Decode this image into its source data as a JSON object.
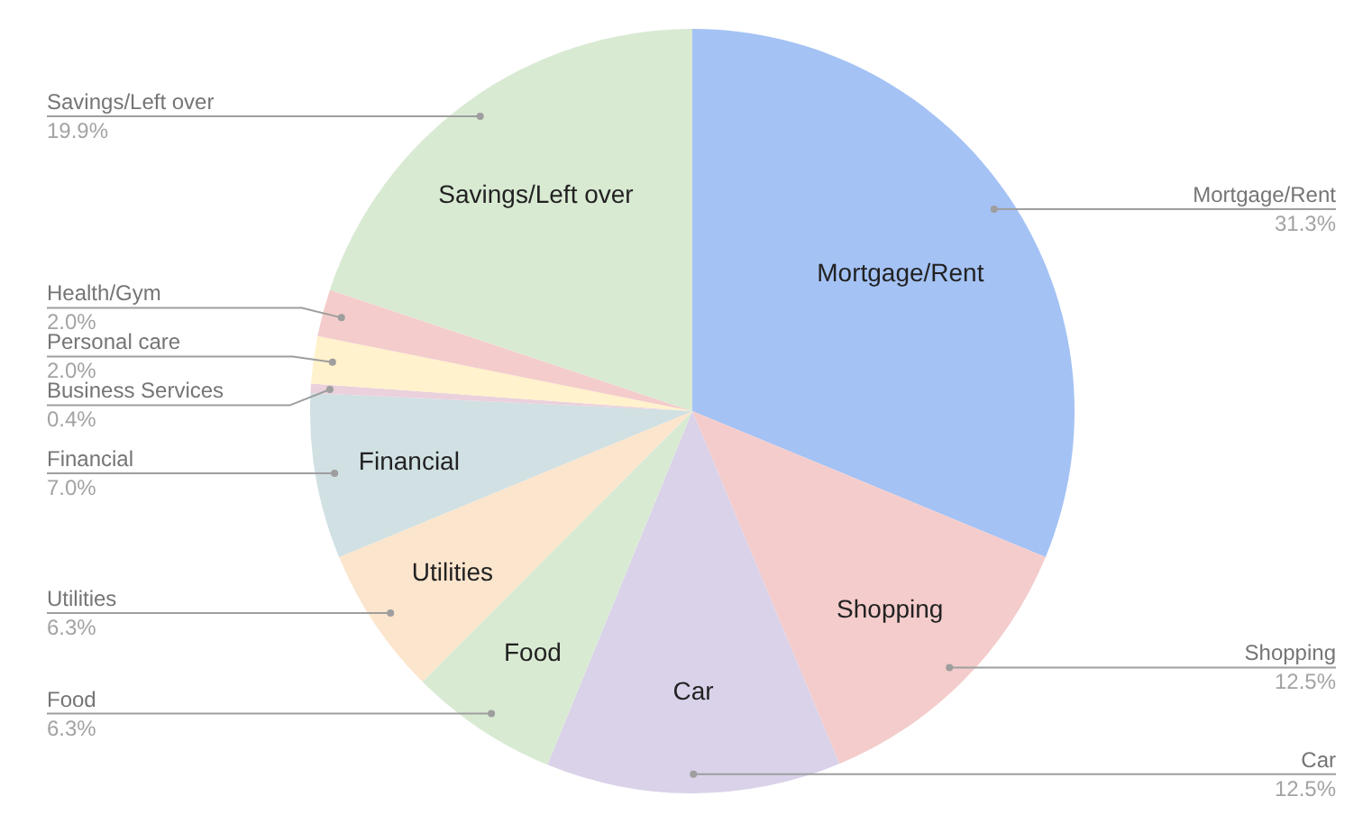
{
  "chart_data": {
    "type": "pie",
    "categories": [
      "Mortgage/Rent",
      "Shopping",
      "Car",
      "Food",
      "Utilities",
      "Financial",
      "Business Services",
      "Personal care",
      "Health/Gym",
      "Savings/Left over"
    ],
    "values": [
      31.3,
      12.5,
      12.5,
      6.3,
      6.3,
      7.0,
      0.4,
      2.0,
      2.0,
      19.9
    ],
    "value_labels": [
      "31.3%",
      "12.5%",
      "12.5%",
      "6.3%",
      "6.3%",
      "7.0%",
      "0.4%",
      "2.0%",
      "2.0%",
      "19.9%"
    ],
    "colors": [
      "#a4c2f4",
      "#f4cccc",
      "#d9d2e9",
      "#d9ead3",
      "#fce5cd",
      "#d0e0e3",
      "#ead1dc",
      "#fff2cc",
      "#f4cccc",
      "#d9ead3"
    ]
  }
}
